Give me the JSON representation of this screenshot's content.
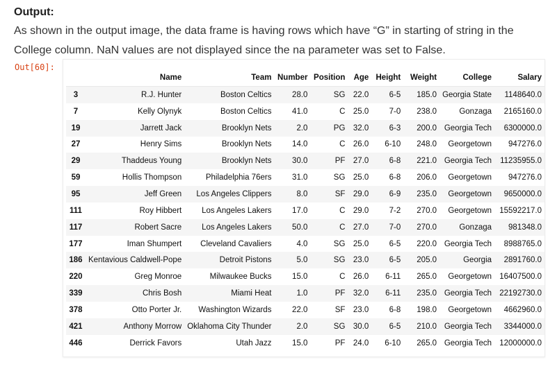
{
  "heading": "Output:",
  "paragraph": "As shown in the output image, the data frame is having rows which have “G” in starting of string in the College column. NaN values are not displayed since the na parameter was set to False.",
  "out_prompt": "Out[60]:",
  "table": {
    "columns": [
      "",
      "Name",
      "Team",
      "Number",
      "Position",
      "Age",
      "Height",
      "Weight",
      "College",
      "Salary"
    ],
    "rows": [
      [
        "3",
        "R.J. Hunter",
        "Boston Celtics",
        "28.0",
        "SG",
        "22.0",
        "6-5",
        "185.0",
        "Georgia State",
        "1148640.0"
      ],
      [
        "7",
        "Kelly Olynyk",
        "Boston Celtics",
        "41.0",
        "C",
        "25.0",
        "7-0",
        "238.0",
        "Gonzaga",
        "2165160.0"
      ],
      [
        "19",
        "Jarrett Jack",
        "Brooklyn Nets",
        "2.0",
        "PG",
        "32.0",
        "6-3",
        "200.0",
        "Georgia Tech",
        "6300000.0"
      ],
      [
        "27",
        "Henry Sims",
        "Brooklyn Nets",
        "14.0",
        "C",
        "26.0",
        "6-10",
        "248.0",
        "Georgetown",
        "947276.0"
      ],
      [
        "29",
        "Thaddeus Young",
        "Brooklyn Nets",
        "30.0",
        "PF",
        "27.0",
        "6-8",
        "221.0",
        "Georgia Tech",
        "11235955.0"
      ],
      [
        "59",
        "Hollis Thompson",
        "Philadelphia 76ers",
        "31.0",
        "SG",
        "25.0",
        "6-8",
        "206.0",
        "Georgetown",
        "947276.0"
      ],
      [
        "95",
        "Jeff Green",
        "Los Angeles Clippers",
        "8.0",
        "SF",
        "29.0",
        "6-9",
        "235.0",
        "Georgetown",
        "9650000.0"
      ],
      [
        "111",
        "Roy Hibbert",
        "Los Angeles Lakers",
        "17.0",
        "C",
        "29.0",
        "7-2",
        "270.0",
        "Georgetown",
        "15592217.0"
      ],
      [
        "117",
        "Robert Sacre",
        "Los Angeles Lakers",
        "50.0",
        "C",
        "27.0",
        "7-0",
        "270.0",
        "Gonzaga",
        "981348.0"
      ],
      [
        "177",
        "Iman Shumpert",
        "Cleveland Cavaliers",
        "4.0",
        "SG",
        "25.0",
        "6-5",
        "220.0",
        "Georgia Tech",
        "8988765.0"
      ],
      [
        "186",
        "Kentavious Caldwell-Pope",
        "Detroit Pistons",
        "5.0",
        "SG",
        "23.0",
        "6-5",
        "205.0",
        "Georgia",
        "2891760.0"
      ],
      [
        "220",
        "Greg Monroe",
        "Milwaukee Bucks",
        "15.0",
        "C",
        "26.0",
        "6-11",
        "265.0",
        "Georgetown",
        "16407500.0"
      ],
      [
        "339",
        "Chris Bosh",
        "Miami Heat",
        "1.0",
        "PF",
        "32.0",
        "6-11",
        "235.0",
        "Georgia Tech",
        "22192730.0"
      ],
      [
        "378",
        "Otto Porter Jr.",
        "Washington Wizards",
        "22.0",
        "SF",
        "23.0",
        "6-8",
        "198.0",
        "Georgetown",
        "4662960.0"
      ],
      [
        "421",
        "Anthony Morrow",
        "Oklahoma City Thunder",
        "2.0",
        "SG",
        "30.0",
        "6-5",
        "210.0",
        "Georgia Tech",
        "3344000.0"
      ],
      [
        "446",
        "Derrick Favors",
        "Utah Jazz",
        "15.0",
        "PF",
        "24.0",
        "6-10",
        "265.0",
        "Georgia Tech",
        "12000000.0"
      ]
    ]
  }
}
